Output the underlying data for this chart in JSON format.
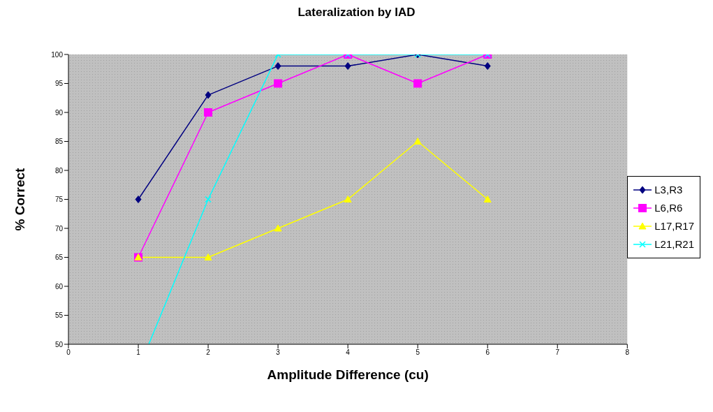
{
  "chart_data": {
    "type": "line",
    "title": "Lateralization by IAD",
    "xlabel": "Amplitude Difference (cu)",
    "ylabel": "% Correct",
    "x": [
      1,
      2,
      3,
      4,
      5,
      6
    ],
    "series": [
      {
        "name": "L3,R3",
        "color": "#000080",
        "marker": "diamond",
        "values": [
          75,
          93,
          98,
          98,
          100,
          98
        ]
      },
      {
        "name": "L6,R6",
        "color": "#ff00ff",
        "marker": "square",
        "values": [
          65,
          90,
          95,
          100,
          95,
          100
        ]
      },
      {
        "name": "L17,R17",
        "color": "#ffff00",
        "marker": "triangle",
        "values": [
          65,
          65,
          70,
          75,
          85,
          75
        ]
      },
      {
        "name": "L21,R21",
        "color": "#00ffff",
        "marker": "cross",
        "x": [
          1.15,
          2,
          3,
          4,
          5,
          6
        ],
        "values": [
          50,
          75,
          100,
          100,
          100,
          100
        ]
      }
    ],
    "xlim": [
      0,
      8
    ],
    "xticks": [
      0,
      1,
      2,
      3,
      4,
      5,
      6,
      7,
      8
    ],
    "ylim": [
      50,
      100
    ],
    "yticks": [
      50,
      55,
      60,
      65,
      70,
      75,
      80,
      85,
      90,
      95,
      100
    ],
    "grid": false,
    "legend": "right",
    "line_style": "solid"
  }
}
